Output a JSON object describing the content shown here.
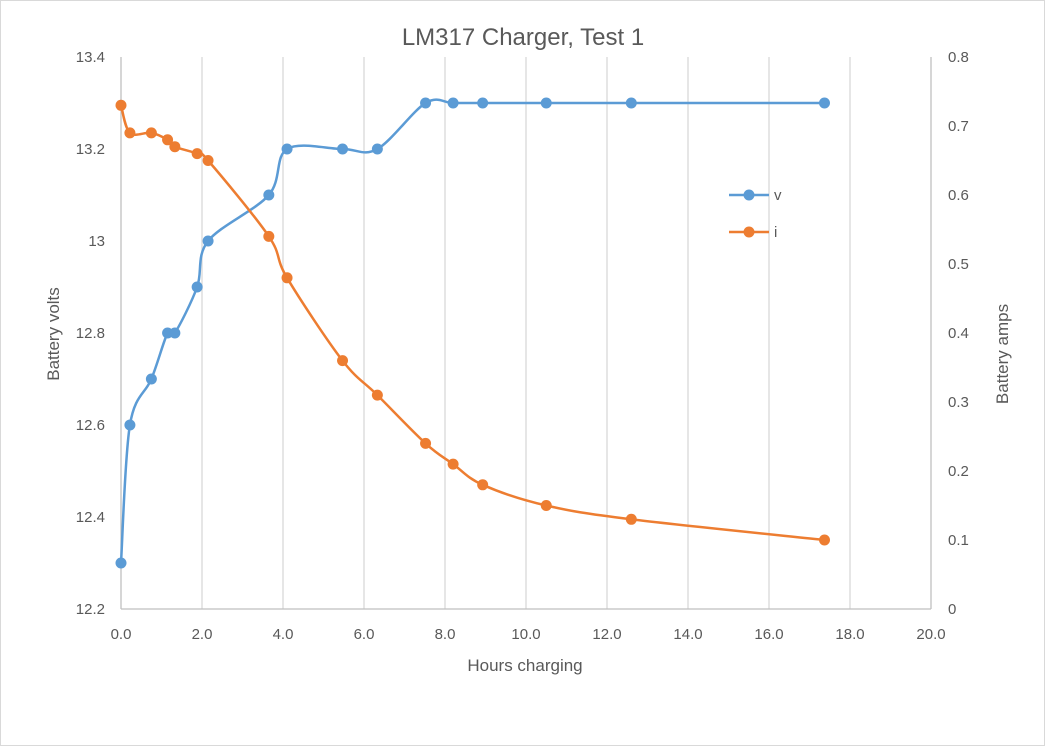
{
  "chart_data": {
    "type": "line",
    "title": "LM317 Charger, Test 1",
    "xlabel": "Hours charging",
    "ylabel_left": "Battery volts",
    "ylabel_right": "Battery amps",
    "xlim": [
      0,
      20
    ],
    "ylim_left": [
      12.2,
      13.4
    ],
    "ylim_right": [
      0,
      0.8
    ],
    "x_ticks": [
      "0.0",
      "2.0",
      "4.0",
      "6.0",
      "8.0",
      "10.0",
      "12.0",
      "14.0",
      "16.0",
      "18.0",
      "20.0"
    ],
    "y_left_ticks": [
      "12.2",
      "12.4",
      "12.6",
      "12.8",
      "13",
      "13.2",
      "13.4"
    ],
    "y_right_ticks": [
      "0",
      "0.1",
      "0.2",
      "0.3",
      "0.4",
      "0.5",
      "0.6",
      "0.7",
      "0.8"
    ],
    "grid": "vertical",
    "legend_position": "right",
    "series": [
      {
        "name": "v",
        "axis": "left",
        "color": "#5b9bd5",
        "x": [
          0.0,
          0.22,
          0.75,
          1.15,
          1.33,
          1.88,
          2.15,
          3.65,
          4.1,
          5.47,
          6.33,
          7.52,
          8.2,
          8.93,
          10.5,
          12.6,
          17.37
        ],
        "y": [
          12.3,
          12.6,
          12.7,
          12.8,
          12.8,
          12.9,
          13.0,
          13.1,
          13.2,
          13.2,
          13.2,
          13.3,
          13.3,
          13.3,
          13.3,
          13.3,
          13.3
        ]
      },
      {
        "name": "i",
        "axis": "right",
        "color": "#ed7d31",
        "x": [
          0.0,
          0.22,
          0.75,
          1.15,
          1.33,
          1.88,
          2.15,
          3.65,
          4.1,
          5.47,
          6.33,
          7.52,
          8.2,
          8.93,
          10.5,
          12.6,
          17.37
        ],
        "y": [
          0.73,
          0.69,
          0.69,
          0.68,
          0.67,
          0.66,
          0.65,
          0.54,
          0.48,
          0.36,
          0.31,
          0.24,
          0.21,
          0.18,
          0.15,
          0.13,
          0.1
        ]
      }
    ]
  }
}
